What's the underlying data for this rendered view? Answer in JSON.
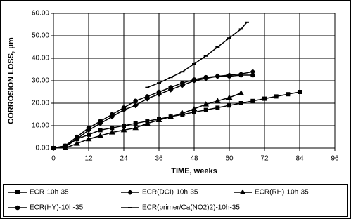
{
  "chart_data": {
    "type": "line",
    "x_label": "TIME, weeks",
    "y_label": "CORROSION LOSS, μm",
    "xlim": [
      0,
      96
    ],
    "xticks": [
      0,
      12,
      24,
      36,
      48,
      60,
      72,
      84,
      96
    ],
    "ylim": [
      0,
      60
    ],
    "yticks": [
      {
        "value": 0,
        "label": "0.00"
      },
      {
        "value": 10,
        "label": "10.00"
      },
      {
        "value": 20,
        "label": "20.00"
      },
      {
        "value": 30,
        "label": "30.00"
      },
      {
        "value": 40,
        "label": "40.00"
      },
      {
        "value": 50,
        "label": "50.00"
      },
      {
        "value": 60,
        "label": "60.00"
      }
    ],
    "grid": true,
    "legend": "bottom",
    "series": [
      {
        "name": "ECR-10h-35",
        "color": "#000000",
        "marker": "square",
        "x": [
          0,
          4,
          8,
          12,
          16,
          20,
          24,
          28,
          32,
          36,
          40,
          44,
          48,
          52,
          56,
          60,
          64,
          68,
          72,
          76,
          80,
          84
        ],
        "values": [
          0,
          1,
          4,
          6,
          8,
          9,
          10,
          11,
          12,
          13,
          14,
          15,
          16,
          17,
          18,
          19,
          20,
          21,
          22,
          23,
          24,
          25
        ]
      },
      {
        "name": "ECR(DCI)-10h-35",
        "color": "#000000",
        "marker": "diamond",
        "x": [
          0,
          4,
          8,
          12,
          16,
          20,
          24,
          28,
          32,
          36,
          40,
          44,
          48,
          52,
          56,
          60,
          64,
          68
        ],
        "values": [
          0,
          0.5,
          4,
          8,
          11,
          14,
          17,
          19,
          22,
          24,
          26,
          28,
          30,
          31,
          32,
          32.5,
          33,
          34
        ]
      },
      {
        "name": "ECR(RH)-10h-35",
        "color": "#000000",
        "marker": "triangle",
        "x": [
          4,
          8,
          12,
          16,
          20,
          24,
          28,
          32,
          36,
          40,
          44,
          48,
          52,
          56,
          60,
          64
        ],
        "values": [
          0,
          2,
          4,
          5.5,
          7,
          8,
          9,
          11,
          12.5,
          14,
          15.5,
          17.5,
          19.5,
          21,
          22.5,
          24.5
        ]
      },
      {
        "name": "ECR(HY)-10h-35",
        "color": "#000000",
        "marker": "circle",
        "x": [
          0,
          4,
          8,
          12,
          16,
          20,
          24,
          28,
          32,
          36,
          40,
          44,
          48,
          52,
          56,
          60,
          64,
          68
        ],
        "values": [
          0,
          1,
          5,
          9,
          12,
          15,
          18,
          21,
          23,
          25,
          27,
          29,
          30.5,
          31.5,
          32,
          32,
          32.5,
          32.5
        ]
      },
      {
        "name": "ECR(primer/Ca(NO2)2)-10h-35",
        "color": "#000000",
        "marker": "dash",
        "x": [
          32,
          36,
          40,
          44,
          48,
          52,
          56,
          60,
          64,
          66
        ],
        "values": [
          27,
          29,
          31.5,
          34,
          37.5,
          41,
          45,
          49,
          53,
          56
        ]
      }
    ]
  }
}
